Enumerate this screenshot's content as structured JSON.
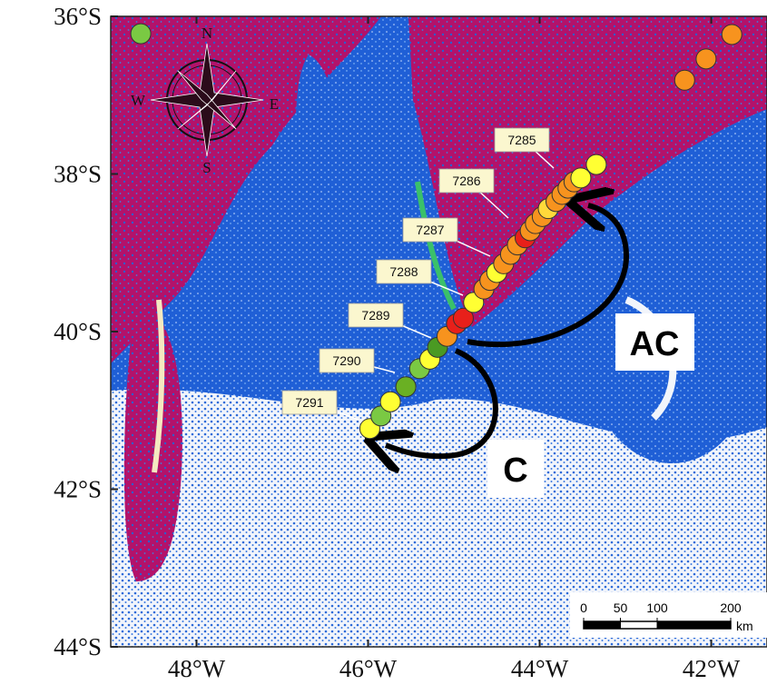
{
  "map": {
    "xlim": [
      -49,
      -41.35
    ],
    "ylim": [
      -44,
      -36
    ],
    "xticks": [
      {
        "value": -48,
        "label": "48°W"
      },
      {
        "value": -46,
        "label": "46°W"
      },
      {
        "value": -44,
        "label": "44°W"
      },
      {
        "value": -42,
        "label": "42°W"
      }
    ],
    "yticks": [
      {
        "value": -36,
        "label": "36°S"
      },
      {
        "value": -38,
        "label": "38°S"
      },
      {
        "value": -40,
        "label": "40°S"
      },
      {
        "value": -42,
        "label": "42°S"
      },
      {
        "value": -44,
        "label": "44°S"
      }
    ],
    "points": [
      {
        "lon": -48.65,
        "lat": -36.22,
        "color": "#7ac943"
      },
      {
        "lon": -41.76,
        "lat": -36.23,
        "color": "#f7931e"
      },
      {
        "lon": -42.06,
        "lat": -36.54,
        "color": "#f7931e"
      },
      {
        "lon": -42.31,
        "lat": -36.81,
        "color": "#f7931e"
      },
      {
        "lon": -45.98,
        "lat": -41.23,
        "color": "#ffff33"
      },
      {
        "lon": -45.85,
        "lat": -41.07,
        "color": "#7ac943"
      },
      {
        "lon": -45.74,
        "lat": -40.89,
        "color": "#ffff33"
      },
      {
        "lon": -45.56,
        "lat": -40.7,
        "color": "#6ab023"
      },
      {
        "lon": -45.4,
        "lat": -40.47,
        "color": "#7ac943"
      },
      {
        "lon": -45.28,
        "lat": -40.35,
        "color": "#ffff33"
      },
      {
        "lon": -45.19,
        "lat": -40.2,
        "color": "#4a9a23"
      },
      {
        "lon": -45.08,
        "lat": -40.06,
        "color": "#f7931e"
      },
      {
        "lon": -44.97,
        "lat": -39.9,
        "color": "#e8201a"
      },
      {
        "lon": -44.89,
        "lat": -39.83,
        "color": "#e8201a"
      },
      {
        "lon": -44.77,
        "lat": -39.63,
        "color": "#ffff33"
      },
      {
        "lon": -44.65,
        "lat": -39.46,
        "color": "#f7931e"
      },
      {
        "lon": -44.58,
        "lat": -39.35,
        "color": "#f7931e"
      },
      {
        "lon": -44.5,
        "lat": -39.25,
        "color": "#ffff33"
      },
      {
        "lon": -44.42,
        "lat": -39.14,
        "color": "#f7931e"
      },
      {
        "lon": -44.34,
        "lat": -39.02,
        "color": "#f7931e"
      },
      {
        "lon": -44.26,
        "lat": -38.9,
        "color": "#f7931e"
      },
      {
        "lon": -44.17,
        "lat": -38.81,
        "color": "#e8201a"
      },
      {
        "lon": -44.11,
        "lat": -38.72,
        "color": "#f7931e"
      },
      {
        "lon": -44.05,
        "lat": -38.63,
        "color": "#f7931e"
      },
      {
        "lon": -43.97,
        "lat": -38.54,
        "color": "#f7931e"
      },
      {
        "lon": -43.9,
        "lat": -38.44,
        "color": "#ffd93b"
      },
      {
        "lon": -43.81,
        "lat": -38.35,
        "color": "#f7931e"
      },
      {
        "lon": -43.74,
        "lat": -38.26,
        "color": "#f7931e"
      },
      {
        "lon": -43.67,
        "lat": -38.18,
        "color": "#f7931e"
      },
      {
        "lon": -43.6,
        "lat": -38.1,
        "color": "#f7931e"
      },
      {
        "lon": -43.52,
        "lat": -38.05,
        "color": "#ffff33"
      },
      {
        "lon": -43.34,
        "lat": -37.88,
        "color": "#ffff33"
      }
    ],
    "stations": [
      "7285",
      "7286",
      "7287",
      "7288",
      "7289",
      "7290",
      "7291"
    ],
    "compass": {
      "n": "N",
      "e": "E",
      "s": "S",
      "w": "W"
    },
    "annotations": [
      "AC",
      "C"
    ],
    "scale_bar": {
      "ticks": [
        0,
        50,
        100,
        200
      ],
      "unit": "km"
    }
  }
}
